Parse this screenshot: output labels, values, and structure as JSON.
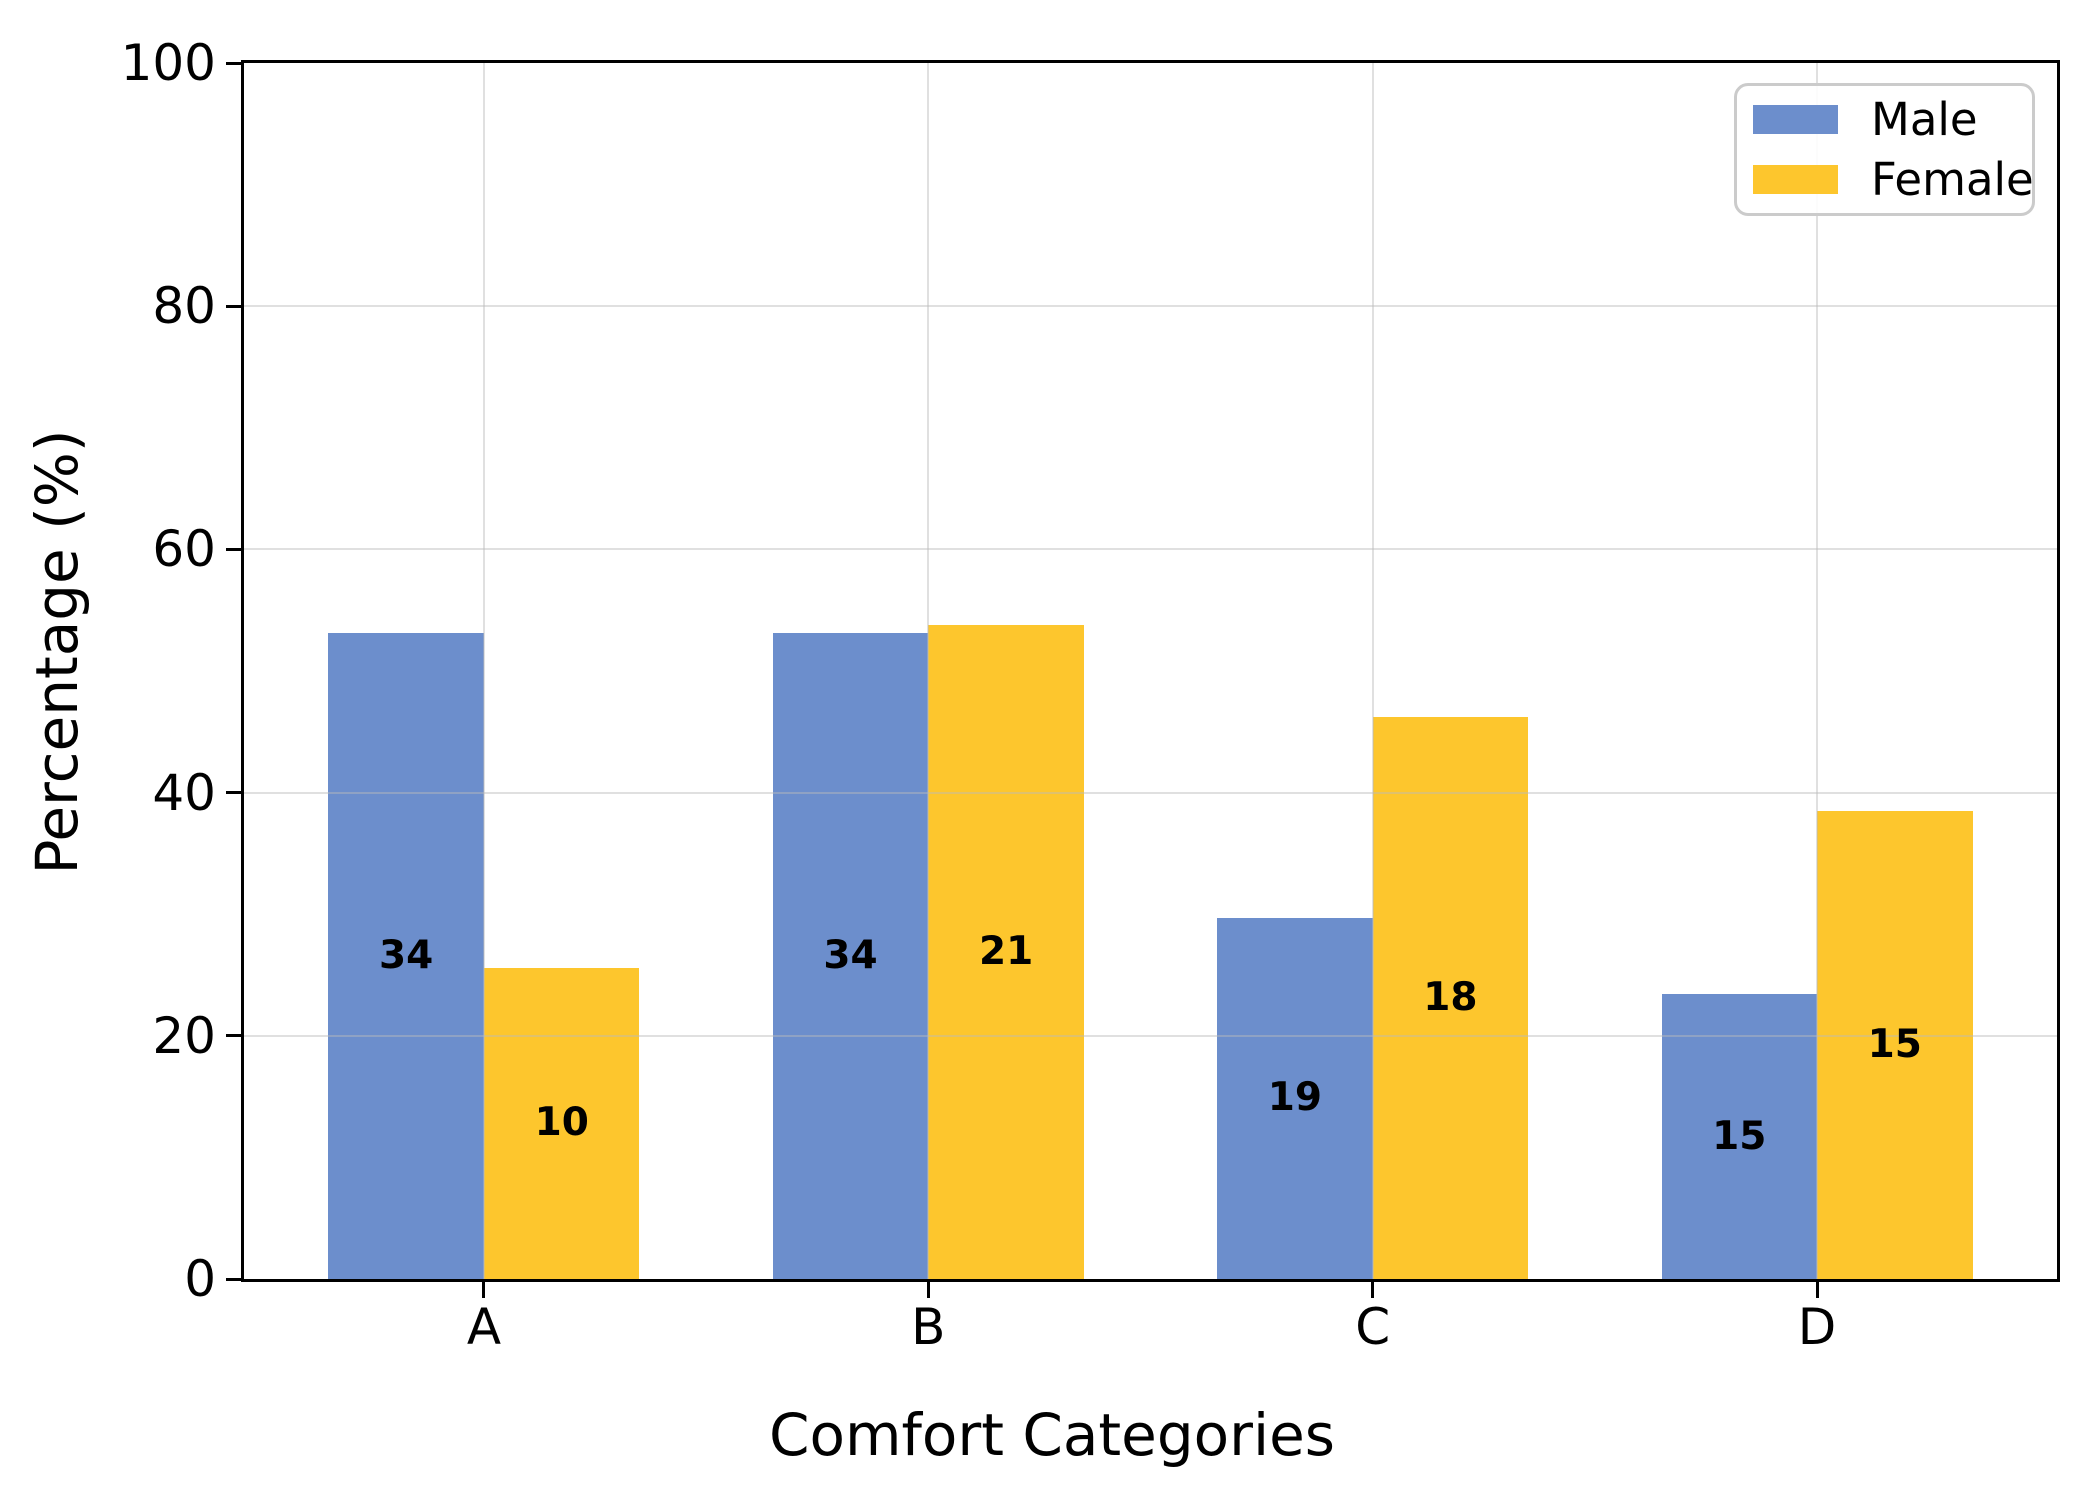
{
  "chart_data": {
    "type": "bar",
    "categories": [
      "A",
      "B",
      "C",
      "D"
    ],
    "series": [
      {
        "name": "Male",
        "color": "#6C8ECC",
        "values": [
          53.1,
          53.1,
          29.7,
          23.4
        ],
        "bar_labels": [
          "34",
          "34",
          "19",
          "15"
        ]
      },
      {
        "name": "Female",
        "color": "#FDC62D",
        "values": [
          25.6,
          53.8,
          46.2,
          38.5
        ],
        "bar_labels": [
          "10",
          "21",
          "18",
          "15"
        ]
      }
    ],
    "title": "",
    "xlabel": "Comfort Categories",
    "ylabel": "Percentage (%)",
    "ylim": [
      0,
      100
    ],
    "yticks": [
      0,
      20,
      40,
      60,
      80,
      100
    ],
    "grid": true,
    "grid_on_top": true,
    "legend_position": "upper right",
    "bar_label_placement": "inside bar, centered at half height"
  },
  "colors": {
    "male_bar": "#6C8ECC",
    "female_bar": "#FDC62D",
    "grid": "#bbbbbb",
    "spine": "#000000",
    "legend_border": "#cbcbcb",
    "text": "#000000",
    "background": "#ffffff"
  }
}
